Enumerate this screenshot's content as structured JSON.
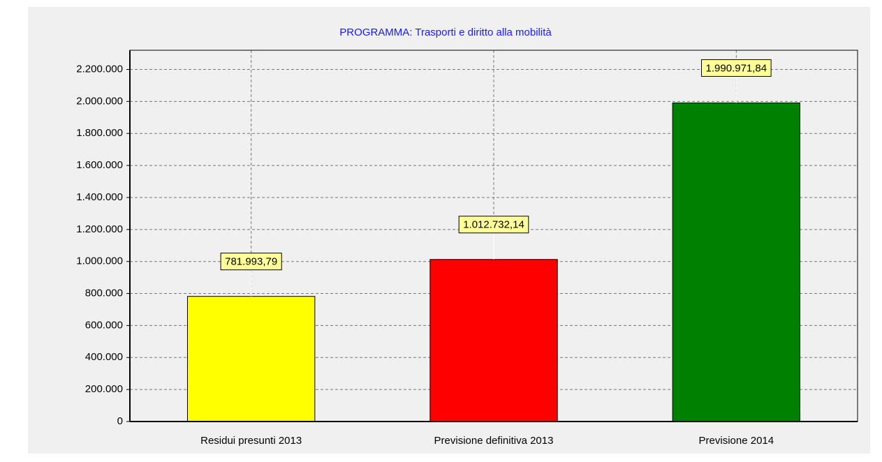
{
  "chart_data": {
    "type": "bar",
    "title": "PROGRAMMA: Trasporti e diritto alla mobilità",
    "categories": [
      "Residui presunti 2013",
      "Previsione definitiva 2013",
      "Previsione 2014"
    ],
    "values": [
      781993.79,
      1012732.14,
      1990971.84
    ],
    "value_labels": [
      "781.993,79",
      "1.012.732,14",
      "1.990.971,84"
    ],
    "colors": [
      "#ffff00",
      "#ff0000",
      "#008000"
    ],
    "ylim": [
      0,
      2320000
    ],
    "yticks": [
      0,
      {
        "value": 200000,
        "label": "200.000"
      },
      {
        "value": 400000,
        "label": "400.000"
      },
      {
        "value": 600000,
        "label": "600.000"
      },
      {
        "value": 800000,
        "label": "800.000"
      },
      {
        "value": 1000000,
        "label": "1.000.000"
      },
      {
        "value": 1200000,
        "label": "1.200.000"
      },
      {
        "value": 1400000,
        "label": "1.400.000"
      },
      {
        "value": 1600000,
        "label": "1.600.000"
      },
      {
        "value": 1800000,
        "label": "1.800.000"
      },
      {
        "value": 2000000,
        "label": "2.000.000"
      },
      {
        "value": 2200000,
        "label": "2.200.000"
      }
    ],
    "grid": true
  }
}
